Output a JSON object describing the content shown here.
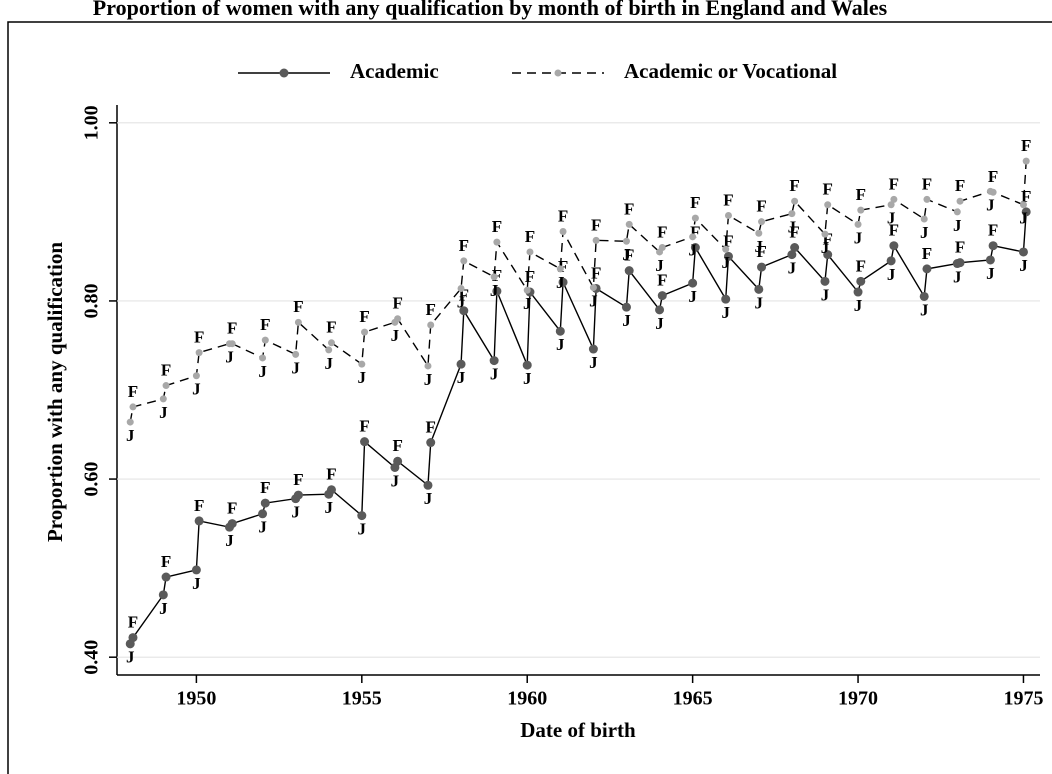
{
  "chart_data": {
    "type": "line",
    "title": "Proportion of women with any qualification by month of birth in England and Wales",
    "xlabel": "Date of birth",
    "ylabel": "Proportion with any qualification",
    "x": [
      1948,
      1948.083,
      1949,
      1949.083,
      1950,
      1950.083,
      1951,
      1951.083,
      1952,
      1952.083,
      1953,
      1953.083,
      1954,
      1954.083,
      1955,
      1955.083,
      1956,
      1956.083,
      1957,
      1957.083,
      1958,
      1958.083,
      1959,
      1959.083,
      1960,
      1960.083,
      1961,
      1961.083,
      1962,
      1962.083,
      1963,
      1963.083,
      1964,
      1964.083,
      1965,
      1965.083,
      1966,
      1966.083,
      1967,
      1967.083,
      1968,
      1968.083,
      1969,
      1969.083,
      1970,
      1970.083,
      1971,
      1971.083,
      1972,
      1972.083,
      1973,
      1973.083,
      1974,
      1974.083,
      1975,
      1975.083
    ],
    "point_labels": [
      "J",
      "F",
      "J",
      "F",
      "J",
      "F",
      "J",
      "F",
      "J",
      "F",
      "J",
      "F",
      "J",
      "F",
      "J",
      "F",
      "J",
      "F",
      "J",
      "F",
      "J",
      "F",
      "J",
      "F",
      "J",
      "F",
      "J",
      "F",
      "J",
      "F",
      "J",
      "F",
      "J",
      "F",
      "J",
      "F",
      "J",
      "F",
      "J",
      "F",
      "J",
      "F",
      "J",
      "F",
      "J",
      "F",
      "J",
      "F",
      "J",
      "F",
      "J",
      "F",
      "J",
      "F",
      "J",
      "F"
    ],
    "series": [
      {
        "name": "Academic",
        "color": "#5a5a5a",
        "line_color": "#000000",
        "dashed": false,
        "values": [
          0.415,
          0.422,
          0.47,
          0.49,
          0.498,
          0.553,
          0.546,
          0.55,
          0.561,
          0.573,
          0.578,
          0.582,
          0.583,
          0.588,
          0.559,
          0.642,
          0.613,
          0.62,
          0.593,
          0.641,
          0.729,
          0.789,
          0.733,
          0.811,
          0.728,
          0.81,
          0.766,
          0.821,
          0.746,
          0.814,
          0.793,
          0.834,
          0.79,
          0.806,
          0.82,
          0.86,
          0.802,
          0.85,
          0.813,
          0.838,
          0.852,
          0.86,
          0.822,
          0.852,
          0.81,
          0.822,
          0.845,
          0.862,
          0.805,
          0.836,
          0.842,
          0.843,
          0.846,
          0.862,
          0.855,
          0.9
        ]
      },
      {
        "name": "Academic or Vocational",
        "color": "#a8a8a8",
        "line_color": "#000000",
        "dashed": true,
        "values": [
          0.664,
          0.681,
          0.69,
          0.705,
          0.716,
          0.742,
          0.752,
          0.752,
          0.736,
          0.756,
          0.74,
          0.776,
          0.745,
          0.753,
          0.729,
          0.765,
          0.776,
          0.78,
          0.727,
          0.773,
          0.814,
          0.845,
          0.827,
          0.866,
          0.812,
          0.855,
          0.836,
          0.878,
          0.815,
          0.868,
          0.867,
          0.886,
          0.855,
          0.86,
          0.872,
          0.893,
          0.858,
          0.896,
          0.876,
          0.889,
          0.898,
          0.912,
          0.875,
          0.908,
          0.886,
          0.902,
          0.908,
          0.914,
          0.892,
          0.914,
          0.9,
          0.912,
          0.923,
          0.922,
          0.908,
          0.957
        ]
      }
    ],
    "xlim": [
      1947.6,
      1975.5
    ],
    "xticks": [
      1950,
      1955,
      1960,
      1965,
      1970,
      1975
    ],
    "ylim": [
      0.38,
      1.02
    ],
    "yticks": [
      {
        "value": 0.4,
        "label": "0.40"
      },
      {
        "value": 0.6,
        "label": "0.60"
      },
      {
        "value": 0.8,
        "label": "0.80"
      },
      {
        "value": 1.0,
        "label": "1.00"
      }
    ],
    "grid": true,
    "legend": "top"
  }
}
